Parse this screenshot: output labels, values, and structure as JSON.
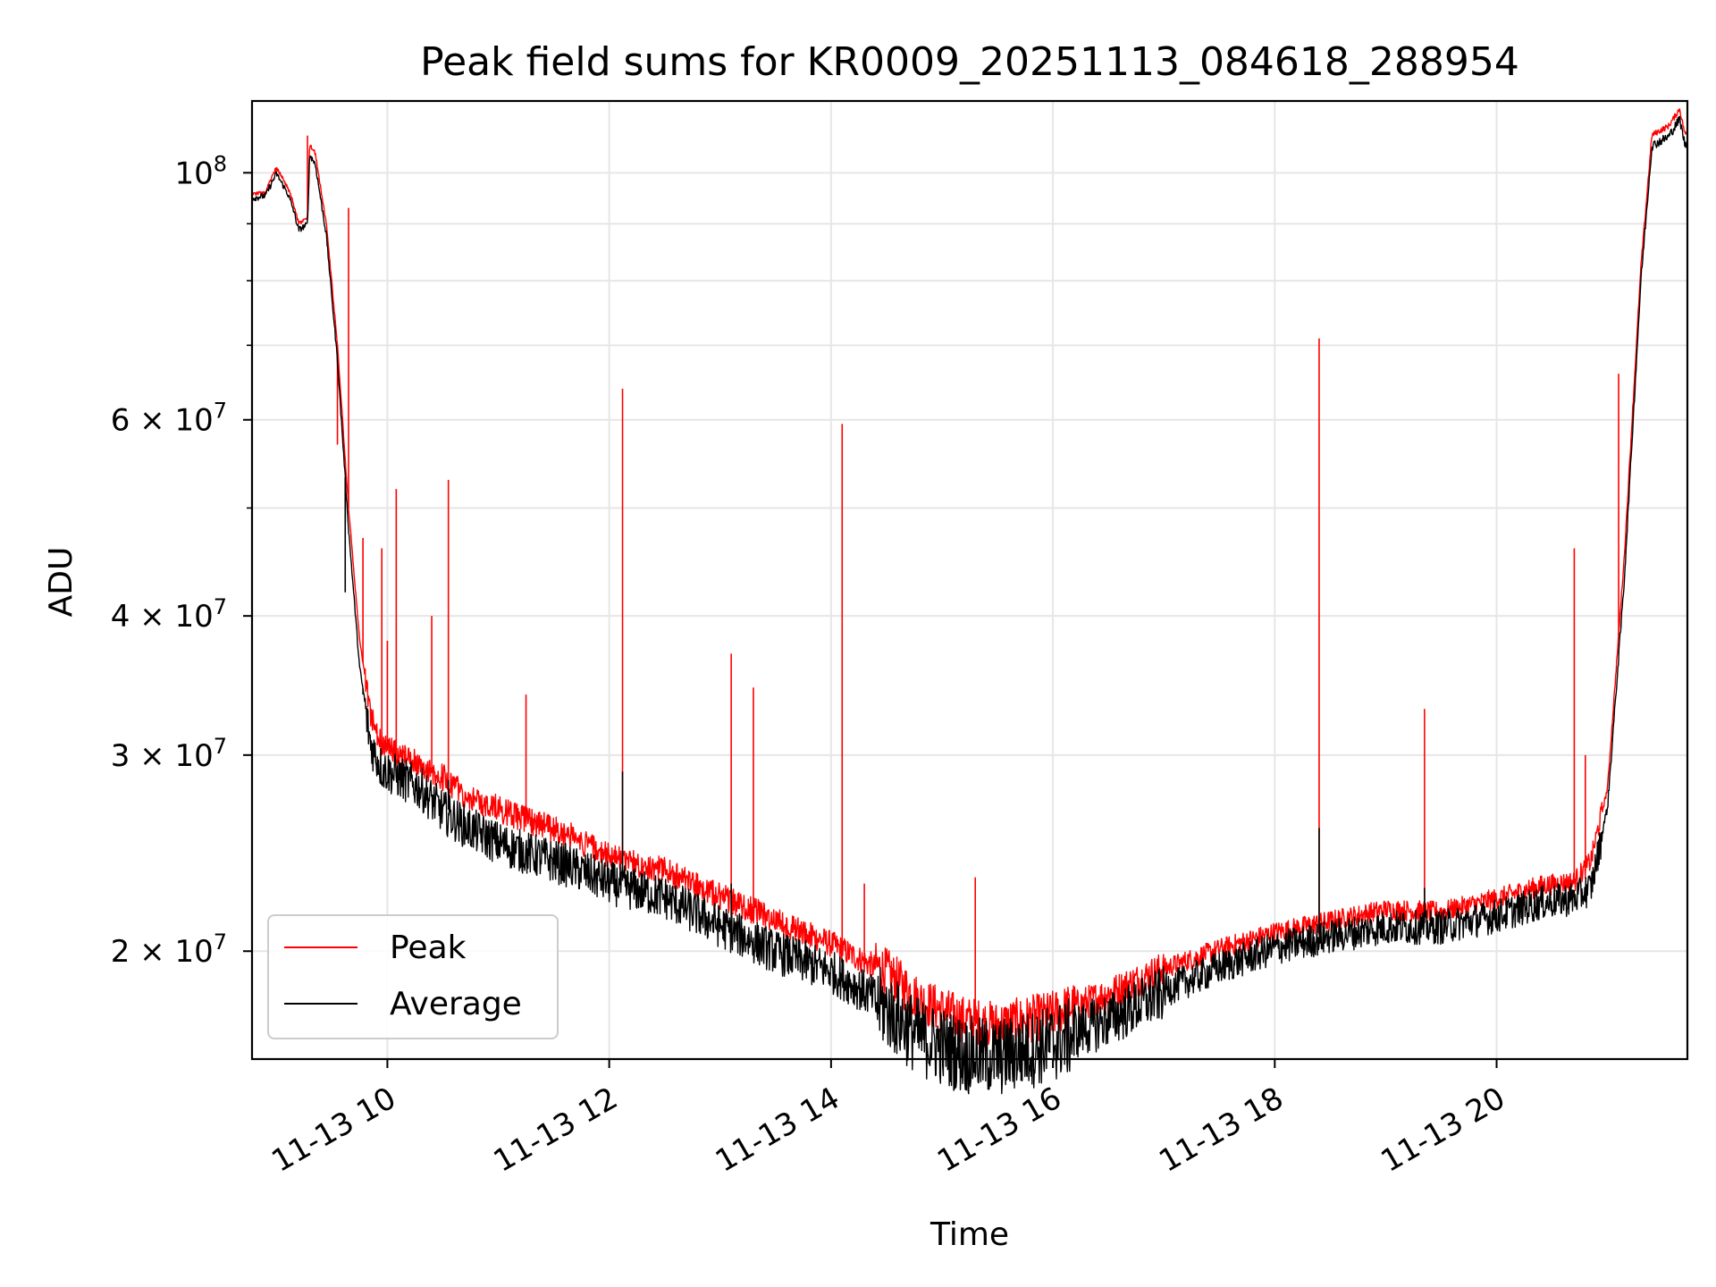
{
  "chart_data": {
    "type": "line",
    "title": "Peak field sums for KR0009_20251113_084618_288954",
    "xlabel": "Time",
    "ylabel": "ADU",
    "yscale": "log",
    "xlim": [
      8.78,
      21.72
    ],
    "ylim": [
      16000000,
      116000000
    ],
    "grid": true,
    "legend_position": "lower-left",
    "x_ticks": [
      {
        "value": 10,
        "label": "11-13 10"
      },
      {
        "value": 12,
        "label": "11-13 12"
      },
      {
        "value": 14,
        "label": "11-13 14"
      },
      {
        "value": 16,
        "label": "11-13 16"
      },
      {
        "value": 18,
        "label": "11-13 18"
      },
      {
        "value": 20,
        "label": "11-13 20"
      }
    ],
    "y_ticks": [
      {
        "value": 20000000,
        "base": "2 × 10",
        "exp": "7"
      },
      {
        "value": 30000000,
        "base": "3 × 10",
        "exp": "7"
      },
      {
        "value": 40000000,
        "base": "4 × 10",
        "exp": "7"
      },
      {
        "value": 60000000,
        "base": "6 × 10",
        "exp": "7"
      },
      {
        "value": 100000000,
        "base": "10",
        "exp": "8"
      }
    ],
    "y_minor_ticks": [
      50000000,
      70000000,
      80000000,
      90000000
    ],
    "series": [
      {
        "name": "Peak",
        "color": "#ff0000",
        "baseline": [
          [
            8.78,
            95500000
          ],
          [
            8.9,
            96000000
          ],
          [
            9.0,
            101000000
          ],
          [
            9.1,
            97000000
          ],
          [
            9.15,
            94000000
          ],
          [
            9.2,
            90000000
          ],
          [
            9.28,
            91000000
          ],
          [
            9.3,
            106000000
          ],
          [
            9.35,
            104000000
          ],
          [
            9.45,
            90000000
          ],
          [
            9.55,
            70000000
          ],
          [
            9.65,
            50000000
          ],
          [
            9.75,
            38000000
          ],
          [
            9.85,
            32500000
          ],
          [
            9.95,
            30500000
          ],
          [
            10.1,
            29800000
          ],
          [
            10.3,
            29300000
          ],
          [
            10.5,
            28500000
          ],
          [
            10.7,
            27500000
          ],
          [
            11.0,
            26700000
          ],
          [
            11.3,
            26000000
          ],
          [
            11.6,
            25400000
          ],
          [
            12.0,
            24200000
          ],
          [
            12.5,
            23500000
          ],
          [
            13.0,
            22300000
          ],
          [
            13.5,
            21200000
          ],
          [
            14.0,
            20200000
          ],
          [
            14.5,
            19000000
          ],
          [
            14.8,
            17900000
          ],
          [
            15.2,
            17200000
          ],
          [
            15.5,
            17000000
          ],
          [
            16.0,
            17400000
          ],
          [
            16.5,
            18200000
          ],
          [
            17.0,
            19200000
          ],
          [
            17.5,
            20000000
          ],
          [
            18.0,
            20700000
          ],
          [
            18.5,
            21200000
          ],
          [
            19.0,
            21700000
          ],
          [
            19.5,
            21600000
          ],
          [
            20.0,
            22200000
          ],
          [
            20.4,
            22800000
          ],
          [
            20.7,
            23000000
          ],
          [
            20.85,
            24000000
          ],
          [
            21.0,
            28000000
          ],
          [
            21.15,
            45000000
          ],
          [
            21.3,
            82000000
          ],
          [
            21.4,
            108000000
          ],
          [
            21.55,
            110000000
          ],
          [
            21.65,
            114000000
          ],
          [
            21.7,
            108000000
          ],
          [
            21.72,
            109000000
          ]
        ],
        "spikes": [
          [
            9.28,
            108000000
          ],
          [
            9.55,
            57000000
          ],
          [
            9.65,
            93000000
          ],
          [
            9.78,
            47000000
          ],
          [
            9.95,
            46000000
          ],
          [
            10.0,
            38000000
          ],
          [
            10.08,
            52000000
          ],
          [
            10.4,
            40000000
          ],
          [
            10.55,
            53000000
          ],
          [
            11.25,
            34000000
          ],
          [
            12.12,
            64000000
          ],
          [
            13.1,
            37000000
          ],
          [
            13.3,
            34500000
          ],
          [
            14.1,
            59500000
          ],
          [
            14.3,
            23000000
          ],
          [
            15.3,
            23300000
          ],
          [
            18.4,
            71000000
          ],
          [
            19.35,
            33000000
          ],
          [
            20.7,
            46000000
          ],
          [
            20.8,
            30000000
          ],
          [
            21.1,
            66000000
          ]
        ]
      },
      {
        "name": "Average",
        "color": "#000000",
        "baseline": [
          [
            8.78,
            95000000
          ],
          [
            8.9,
            95500000
          ],
          [
            9.0,
            100000000
          ],
          [
            9.1,
            96000000
          ],
          [
            9.15,
            93000000
          ],
          [
            9.2,
            89000000
          ],
          [
            9.28,
            90000000
          ],
          [
            9.3,
            104000000
          ],
          [
            9.35,
            102000000
          ],
          [
            9.45,
            88000000
          ],
          [
            9.55,
            68000000
          ],
          [
            9.65,
            48000000
          ],
          [
            9.75,
            36000000
          ],
          [
            9.85,
            31000000
          ],
          [
            9.95,
            29500000
          ],
          [
            10.1,
            29000000
          ],
          [
            10.3,
            28300000
          ],
          [
            10.5,
            27000000
          ],
          [
            10.7,
            26200000
          ],
          [
            11.0,
            25300000
          ],
          [
            11.3,
            24700000
          ],
          [
            11.6,
            24200000
          ],
          [
            12.0,
            23300000
          ],
          [
            12.5,
            22600000
          ],
          [
            13.0,
            21300000
          ],
          [
            13.5,
            20200000
          ],
          [
            14.0,
            19400000
          ],
          [
            14.5,
            18100000
          ],
          [
            14.8,
            17100000
          ],
          [
            15.2,
            16500000
          ],
          [
            15.5,
            16400000
          ],
          [
            16.0,
            16900000
          ],
          [
            16.5,
            17600000
          ],
          [
            17.0,
            18600000
          ],
          [
            17.5,
            19500000
          ],
          [
            18.0,
            20300000
          ],
          [
            18.5,
            20800000
          ],
          [
            19.0,
            21200000
          ],
          [
            19.5,
            21200000
          ],
          [
            20.0,
            21700000
          ],
          [
            20.4,
            22300000
          ],
          [
            20.7,
            22500000
          ],
          [
            20.85,
            23000000
          ],
          [
            21.0,
            27000000
          ],
          [
            21.15,
            43000000
          ],
          [
            21.3,
            80000000
          ],
          [
            21.4,
            106000000
          ],
          [
            21.55,
            108000000
          ],
          [
            21.65,
            112000000
          ],
          [
            21.7,
            106000000
          ],
          [
            21.72,
            107000000
          ]
        ],
        "spikes": [
          [
            9.62,
            42000000
          ],
          [
            9.78,
            34000000
          ],
          [
            10.55,
            28500000
          ],
          [
            12.12,
            29000000
          ],
          [
            13.1,
            23000000
          ],
          [
            18.4,
            25800000
          ],
          [
            19.35,
            22800000
          ]
        ]
      }
    ]
  }
}
